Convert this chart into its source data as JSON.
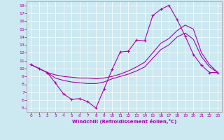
{
  "xlabel": "Windchill (Refroidissement éolien,°C)",
  "xlim": [
    -0.5,
    23.5
  ],
  "ylim": [
    4.5,
    18.5
  ],
  "xticks": [
    0,
    1,
    2,
    3,
    4,
    5,
    6,
    7,
    8,
    9,
    10,
    11,
    12,
    13,
    14,
    15,
    16,
    17,
    18,
    19,
    20,
    21,
    22,
    23
  ],
  "yticks": [
    5,
    6,
    7,
    8,
    9,
    10,
    11,
    12,
    13,
    14,
    15,
    16,
    17,
    18
  ],
  "bg_color": "#cce8f0",
  "line_color": "#aa00aa",
  "line1_x": [
    0,
    1,
    2,
    3,
    4,
    5,
    6,
    7,
    8,
    9,
    10,
    11,
    12,
    13,
    14,
    15,
    16,
    17,
    18,
    19,
    20,
    21,
    22,
    23
  ],
  "line1_y": [
    10.5,
    10.0,
    9.5,
    8.2,
    6.8,
    6.1,
    6.2,
    5.8,
    5.0,
    7.4,
    9.9,
    12.1,
    12.2,
    13.6,
    13.5,
    16.7,
    17.5,
    18.0,
    16.2,
    14.1,
    11.8,
    10.4,
    9.5,
    9.5
  ],
  "line2_x": [
    0,
    1,
    2,
    3,
    4,
    5,
    6,
    7,
    8,
    9,
    10,
    11,
    12,
    13,
    14,
    15,
    16,
    17,
    18,
    19,
    20,
    21,
    22,
    23
  ],
  "line2_y": [
    10.5,
    10.0,
    9.5,
    8.8,
    8.5,
    8.3,
    8.2,
    8.1,
    8.1,
    8.3,
    8.7,
    9.0,
    9.3,
    9.7,
    10.2,
    11.3,
    12.4,
    13.0,
    14.0,
    14.5,
    13.7,
    11.5,
    10.2,
    9.5
  ],
  "line3_x": [
    0,
    1,
    2,
    3,
    4,
    5,
    6,
    7,
    8,
    9,
    10,
    11,
    12,
    13,
    14,
    15,
    16,
    17,
    18,
    19,
    20,
    21,
    22,
    23
  ],
  "line3_y": [
    10.5,
    10.0,
    9.5,
    9.2,
    9.0,
    8.9,
    8.8,
    8.8,
    8.7,
    8.8,
    9.0,
    9.3,
    9.7,
    10.2,
    10.8,
    12.0,
    13.2,
    13.8,
    14.8,
    15.5,
    15.0,
    12.0,
    10.5,
    9.5
  ]
}
